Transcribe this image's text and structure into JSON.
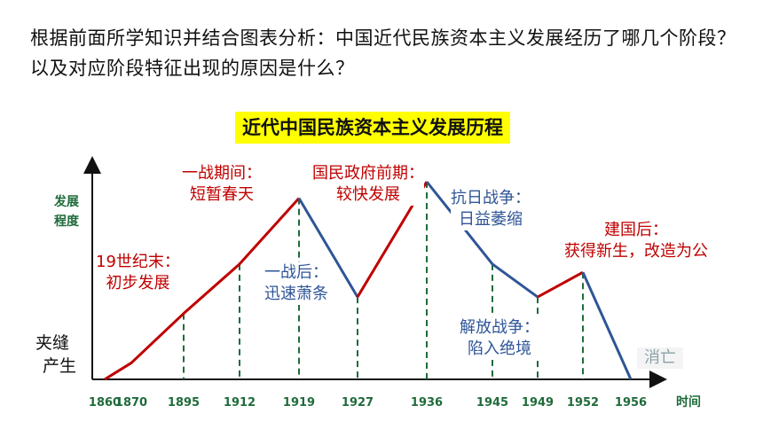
{
  "question": "根据前面所学知识并结合图表分析：中国近代民族资本主义发展经历了哪几个阶段？以及对应阶段特征出现的原因是什么？",
  "chart_data": {
    "type": "line",
    "title": "近代中国民族资本主义发展历程",
    "ylabel_lines": [
      "发展",
      "程度"
    ],
    "xlabel": "时间",
    "categories": [
      "1860",
      "1870",
      "1895",
      "1912",
      "1919",
      "1927",
      "1936",
      "1945",
      "1949",
      "1952",
      "1956"
    ],
    "series": [
      {
        "segment": "rise",
        "color": "#c00000",
        "points": [
          [
            1860,
            0
          ],
          [
            1870,
            1
          ],
          [
            1895,
            4
          ],
          [
            1912,
            7
          ],
          [
            1919,
            11
          ]
        ]
      },
      {
        "segment": "fall",
        "color": "#2f5597",
        "points": [
          [
            1919,
            11
          ],
          [
            1927,
            5
          ]
        ]
      },
      {
        "segment": "rise",
        "color": "#c00000",
        "points": [
          [
            1927,
            5
          ],
          [
            1936,
            12
          ]
        ]
      },
      {
        "segment": "fall",
        "color": "#2f5597",
        "points": [
          [
            1936,
            12
          ],
          [
            1945,
            7
          ],
          [
            1949,
            5
          ]
        ]
      },
      {
        "segment": "rise",
        "color": "#c00000",
        "points": [
          [
            1949,
            5
          ],
          [
            1952,
            6.5
          ]
        ]
      },
      {
        "segment": "fall",
        "color": "#2f5597",
        "points": [
          [
            1952,
            6.5
          ],
          [
            1956,
            0
          ]
        ]
      }
    ],
    "dashed_ticks": [
      "1895",
      "1912",
      "1919",
      "1927",
      "1936",
      "1945",
      "1949",
      "1952"
    ],
    "annotations": {
      "birth": [
        "夹缝",
        "产生"
      ],
      "late19": [
        "19世纪末：",
        "初步发展"
      ],
      "ww1": [
        "一战期间：",
        "短暂春天"
      ],
      "postww1": [
        "一战后：",
        "迅速萧条"
      ],
      "nationalist": [
        "国民政府前期：",
        "较快发展"
      ],
      "antijap": [
        "抗日战争：",
        "日益萎缩"
      ],
      "liberation": [
        "解放战争：",
        "陷入绝境"
      ],
      "postfounding": [
        "建国后：",
        "获得新生，改造为公"
      ],
      "end": "消亡"
    }
  }
}
